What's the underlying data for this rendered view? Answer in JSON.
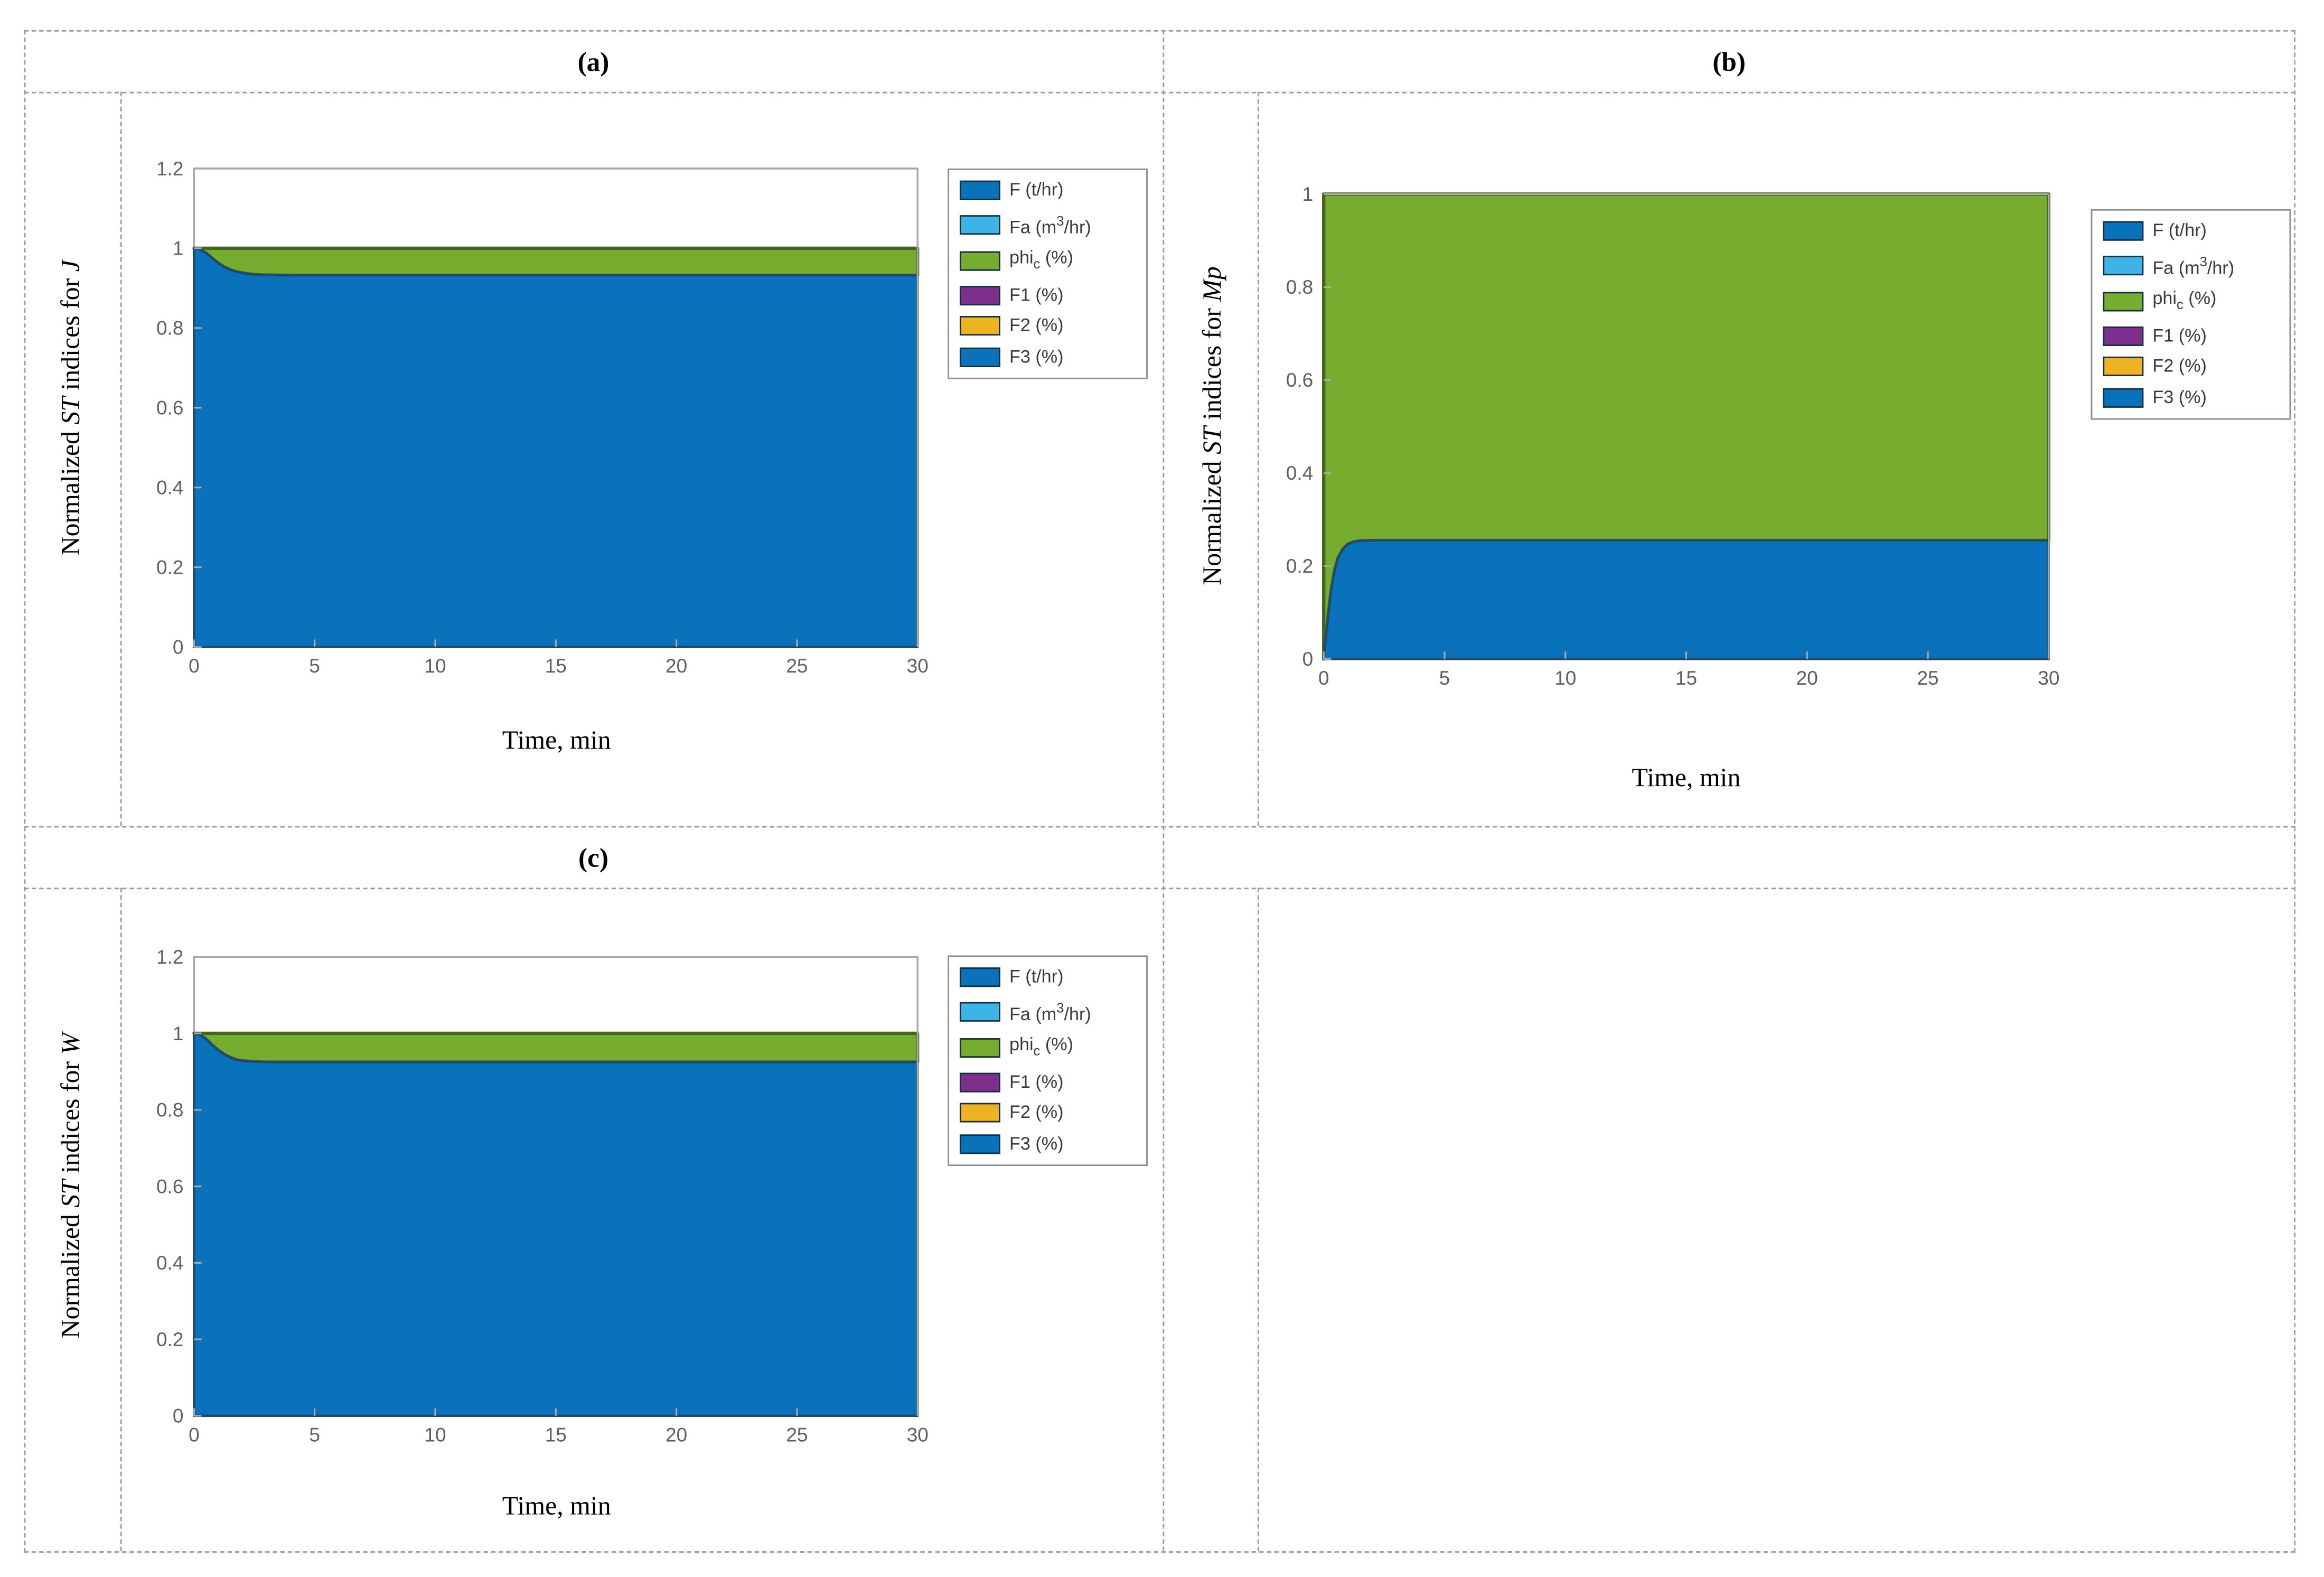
{
  "figure": {
    "panel_titles": {
      "a": "(a)",
      "b": "(b)",
      "c": "(c)"
    },
    "colors": {
      "area_blue": "#0a72ba",
      "area_blue_edge": "#1d4a6e",
      "area_green": "#77ad2e",
      "area_green_edge": "#44631f",
      "legend_light_blue": "#3cb4e7",
      "legend_purple": "#7e2f8e",
      "legend_yellow": "#eeb320",
      "axis_spine_gray": "#a9a9a9",
      "tick_label_gray": "#5e5e5e",
      "table_dash_gray": "#9b9b9b"
    },
    "legend": {
      "entries": [
        {
          "name": "F",
          "pre": "F (t/hr)"
        },
        {
          "name": "Fa",
          "pre": "Fa (m",
          "sup": "3",
          "post": "/hr)"
        },
        {
          "name": "phi_c",
          "pre": "phi",
          "sub": "c",
          "post": " (%)"
        },
        {
          "name": "F1",
          "pre": "F1 (%)"
        },
        {
          "name": "F2",
          "pre": "F2 (%)"
        },
        {
          "name": "F3",
          "pre": "F3 (%)"
        }
      ],
      "swatch_colors": [
        "#0a72ba",
        "#3cb4e7",
        "#77ad2e",
        "#7e2f8e",
        "#eeb320",
        "#0a72ba"
      ]
    },
    "chart_data": [
      {
        "id": "a",
        "type": "area",
        "stacked": true,
        "title": "(a)",
        "ylabel_parts": [
          {
            "text": "Normalized ",
            "italic": false
          },
          {
            "text": "ST",
            "italic": true
          },
          {
            "text": " indices for ",
            "italic": false
          },
          {
            "text": "J",
            "italic": true
          }
        ],
        "xlabel": "Time, min",
        "xlim": [
          0,
          30
        ],
        "ylim": [
          0,
          1.2
        ],
        "xticks": [
          0,
          5,
          10,
          15,
          20,
          25,
          30
        ],
        "yticks": [
          0,
          0.2,
          0.4,
          0.6,
          0.8,
          1,
          1.2
        ],
        "series": [
          {
            "name": "F (t/hr)",
            "color": "#0a72ba",
            "edge_color": "#1d4a6e",
            "points": [
              [
                0,
                1.0
              ],
              [
                0.25,
                0.997
              ],
              [
                0.5,
                0.988
              ],
              [
                0.75,
                0.975
              ],
              [
                1,
                0.963
              ],
              [
                1.25,
                0.953
              ],
              [
                1.5,
                0.946
              ],
              [
                1.75,
                0.941
              ],
              [
                2,
                0.938
              ],
              [
                2.5,
                0.934
              ],
              [
                3,
                0.933
              ],
              [
                4,
                0.932
              ],
              [
                5,
                0.932
              ],
              [
                30,
                0.932
              ]
            ]
          },
          {
            "name": "Fa (m3/hr)",
            "color": "#3cb4e7",
            "thickness": 0
          },
          {
            "name": "phi_c (%)",
            "color": "#77ad2e",
            "edge_color": "#44631f",
            "fill_to": 1.0
          },
          {
            "name": "F1 (%)",
            "color": "#7e2f8e",
            "thickness": 0
          },
          {
            "name": "F2 (%)",
            "color": "#eeb320",
            "thickness": 0
          },
          {
            "name": "F3 (%)",
            "color": "#0a72ba",
            "thickness": 0
          }
        ]
      },
      {
        "id": "b",
        "type": "area",
        "stacked": true,
        "title": "(b)",
        "ylabel_parts": [
          {
            "text": "Normalized ",
            "italic": false
          },
          {
            "text": "ST",
            "italic": true
          },
          {
            "text": " indices for ",
            "italic": false
          },
          {
            "text": "Mp",
            "italic": true
          }
        ],
        "xlabel": "Time, min",
        "xlim": [
          0,
          30
        ],
        "ylim": [
          0,
          1
        ],
        "xticks": [
          0,
          5,
          10,
          15,
          20,
          25,
          30
        ],
        "yticks": [
          0,
          0.2,
          0.4,
          0.6,
          0.8,
          1
        ],
        "series": [
          {
            "name": "F (t/hr)",
            "color": "#0a72ba",
            "edge_color": "#1d4a6e",
            "points": [
              [
                0,
                0
              ],
              [
                0.1,
                0.05
              ],
              [
                0.2,
                0.1
              ],
              [
                0.3,
                0.145
              ],
              [
                0.45,
                0.19
              ],
              [
                0.6,
                0.218
              ],
              [
                0.8,
                0.237
              ],
              [
                1.0,
                0.247
              ],
              [
                1.25,
                0.252
              ],
              [
                1.5,
                0.254
              ],
              [
                2,
                0.255
              ],
              [
                3,
                0.255
              ],
              [
                30,
                0.255
              ]
            ]
          },
          {
            "name": "Fa (m3/hr)",
            "color": "#3cb4e7",
            "thickness": 0
          },
          {
            "name": "phi_c (%)",
            "color": "#77ad2e",
            "edge_color": "#44631f",
            "fill_to": 1.0
          },
          {
            "name": "F1 (%)",
            "color": "#7e2f8e",
            "thickness": 0
          },
          {
            "name": "F2 (%)",
            "color": "#eeb320",
            "thickness": 0
          },
          {
            "name": "F3 (%)",
            "color": "#0a72ba",
            "thickness": 0
          }
        ]
      },
      {
        "id": "c",
        "type": "area",
        "stacked": true,
        "title": "(c)",
        "ylabel_parts": [
          {
            "text": "Normalized ",
            "italic": false
          },
          {
            "text": "ST",
            "italic": true
          },
          {
            "text": " indices for ",
            "italic": false
          },
          {
            "text": "W",
            "italic": true
          }
        ],
        "xlabel": "Time, min",
        "xlim": [
          0,
          30
        ],
        "ylim": [
          0,
          1.2
        ],
        "xticks": [
          0,
          5,
          10,
          15,
          20,
          25,
          30
        ],
        "yticks": [
          0,
          0.2,
          0.4,
          0.6,
          0.8,
          1,
          1.2
        ],
        "series": [
          {
            "name": "F (t/hr)",
            "color": "#0a72ba",
            "edge_color": "#1d4a6e",
            "points": [
              [
                0,
                1.0
              ],
              [
                0.25,
                0.996
              ],
              [
                0.5,
                0.985
              ],
              [
                0.75,
                0.97
              ],
              [
                1,
                0.956
              ],
              [
                1.25,
                0.945
              ],
              [
                1.5,
                0.937
              ],
              [
                1.75,
                0.931
              ],
              [
                2,
                0.928
              ],
              [
                2.5,
                0.926
              ],
              [
                3,
                0.925
              ],
              [
                4,
                0.925
              ],
              [
                5,
                0.925
              ],
              [
                30,
                0.925
              ]
            ]
          },
          {
            "name": "Fa (m3/hr)",
            "color": "#3cb4e7",
            "thickness": 0
          },
          {
            "name": "phi_c (%)",
            "color": "#77ad2e",
            "edge_color": "#44631f",
            "fill_to": 1.0
          },
          {
            "name": "F1 (%)",
            "color": "#7e2f8e",
            "thickness": 0
          },
          {
            "name": "F2 (%)",
            "color": "#eeb320",
            "thickness": 0
          },
          {
            "name": "F3 (%)",
            "color": "#0a72ba",
            "thickness": 0
          }
        ]
      }
    ]
  }
}
